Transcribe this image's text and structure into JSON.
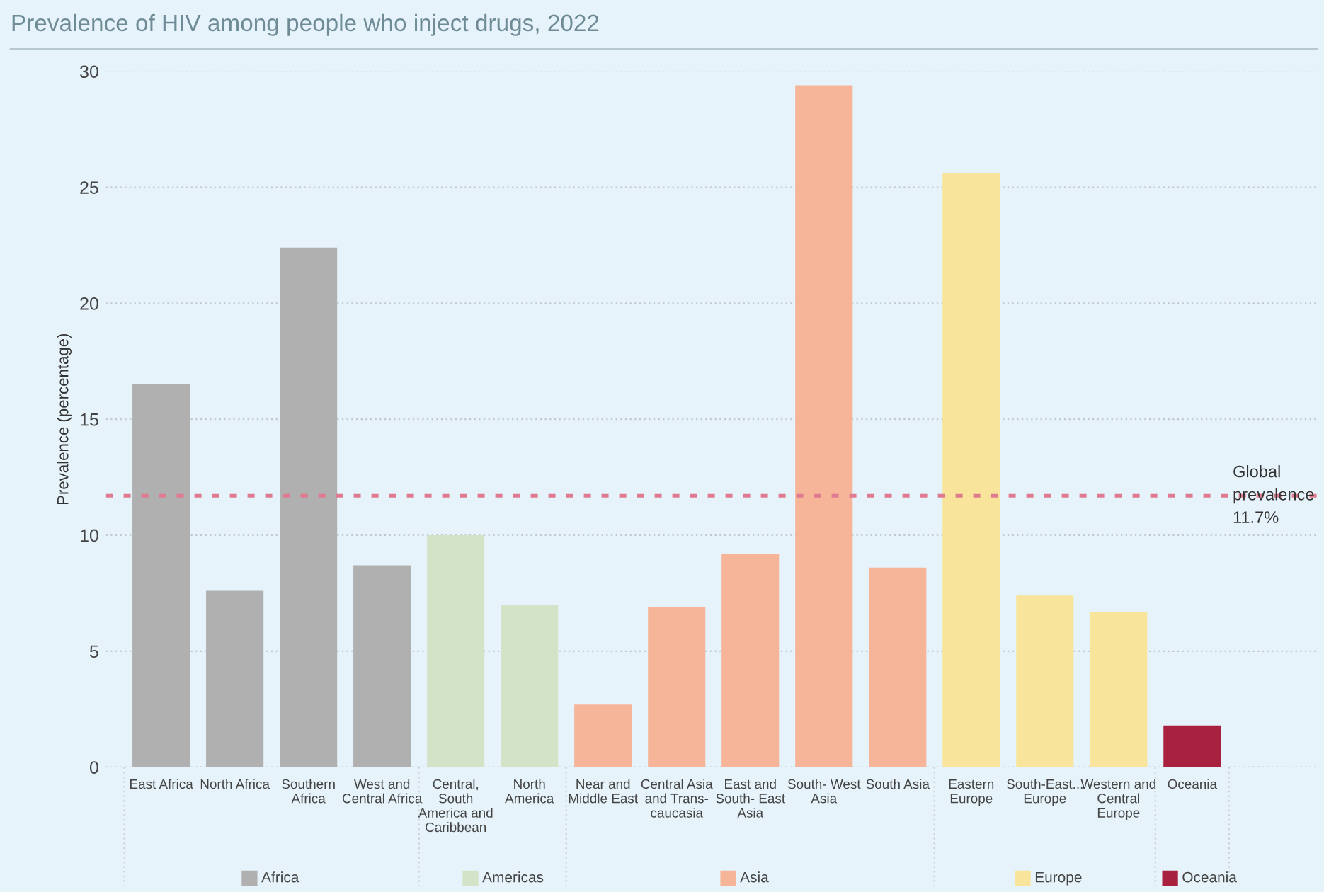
{
  "chart_data": {
    "type": "bar",
    "title": "Prevalence of HIV among people who inject drugs, 2022",
    "ylabel": "Prevalence (percentage)",
    "categories": [
      "East Africa",
      "North Africa",
      "Southern\nAfrica",
      "West and\nCentral Africa",
      "Central,\nSouth\nAmerica and\nCaribbean",
      "North\nAmerica",
      "Near and\nMiddle East",
      "Central Asia\nand Trans-\ncaucasia",
      "East and\nSouth- East\nAsia",
      "South- West\nAsia",
      "South Asia",
      "Eastern\nEurope",
      "South-East...\nEurope",
      "Western and\nCentral\nEurope",
      "Oceania"
    ],
    "series": [
      {
        "name": "Africa",
        "color": "#b0b0b0",
        "values": [
          16.5,
          7.6,
          22.4,
          8.7,
          null,
          null,
          null,
          null,
          null,
          null,
          null,
          null,
          null,
          null,
          null
        ]
      },
      {
        "name": "Americas",
        "color": "#d2e3c8",
        "values": [
          null,
          null,
          null,
          null,
          10.0,
          7.0,
          null,
          null,
          null,
          null,
          null,
          null,
          null,
          null,
          null
        ]
      },
      {
        "name": "Asia",
        "color": "#f6b599",
        "values": [
          null,
          null,
          null,
          null,
          null,
          null,
          2.7,
          6.9,
          9.2,
          29.4,
          8.6,
          null,
          null,
          null,
          null
        ]
      },
      {
        "name": "Europe",
        "color": "#f8e59b",
        "values": [
          null,
          null,
          null,
          null,
          null,
          null,
          null,
          null,
          null,
          null,
          null,
          25.6,
          7.4,
          6.7,
          null
        ]
      },
      {
        "name": "Oceania",
        "color": "#a8213f",
        "values": [
          null,
          null,
          null,
          null,
          null,
          null,
          null,
          null,
          null,
          null,
          null,
          null,
          null,
          null,
          1.8
        ]
      }
    ],
    "legend": "bottom",
    "ylim": [
      0,
      30
    ],
    "yticks": [
      0,
      5,
      10,
      15,
      20,
      25,
      30
    ],
    "grid": "y",
    "ref_lines": [
      {
        "axis": "y",
        "value": 11.7,
        "label": "Global\nprevalence\n11.7%",
        "color": "#e07a90",
        "line_style": "dotted"
      }
    ]
  }
}
